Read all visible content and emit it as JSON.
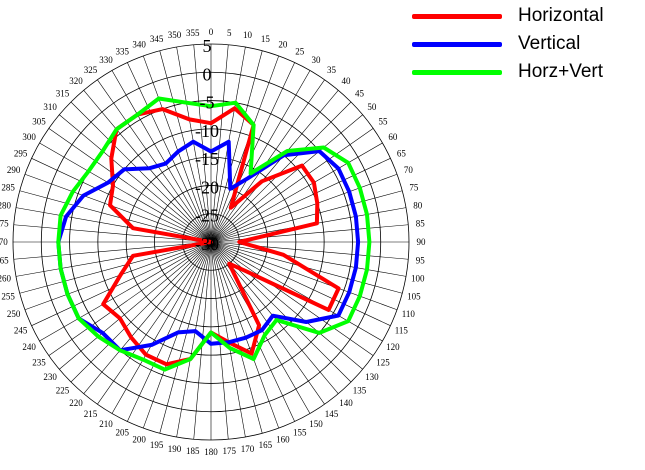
{
  "chart_data": {
    "type": "polar-line",
    "radial_ticks": [
      "5",
      "0",
      "-5",
      "-10",
      "-15",
      "-20",
      "-25",
      "-30"
    ],
    "angle_ticks": [
      "0",
      "5",
      "10",
      "15",
      "20",
      "25",
      "30",
      "35",
      "40",
      "45",
      "50",
      "55",
      "60",
      "65",
      "70",
      "75",
      "80",
      "85",
      "90",
      "95",
      "100",
      "105",
      "110",
      "115",
      "120",
      "125",
      "130",
      "135",
      "140",
      "145",
      "150",
      "155",
      "160",
      "165",
      "170",
      "175",
      "180",
      "185",
      "190",
      "195",
      "200",
      "205",
      "210",
      "215",
      "220",
      "225",
      "230",
      "235",
      "240",
      "245",
      "250",
      "255",
      "260",
      "265",
      "270",
      "275",
      "280",
      "285",
      "290",
      "295",
      "300",
      "305",
      "310",
      "315",
      "320",
      "325",
      "330",
      "335",
      "340",
      "345",
      "350",
      "355"
    ],
    "legend_position": "top-right",
    "angles": [
      0,
      10,
      20,
      30,
      40,
      50,
      60,
      70,
      80,
      90,
      100,
      110,
      120,
      130,
      140,
      150,
      160,
      170,
      180,
      190,
      200,
      210,
      220,
      230,
      240,
      250,
      260,
      270,
      280,
      290,
      300,
      310,
      320,
      330,
      340,
      350
    ],
    "series": [
      {
        "name": "Horizontal",
        "color": "#ff0000",
        "values": [
          -9,
          -6,
          -8,
          -23,
          -16,
          -9,
          -9,
          -10,
          -11,
          -25,
          -17,
          -6,
          -6,
          -22,
          -25,
          -13,
          -9,
          -12,
          -14,
          -9,
          -7,
          -7,
          -8,
          -9,
          -8,
          -13,
          -16,
          -30,
          -16,
          -11,
          -10,
          -7,
          -4,
          -4,
          -5,
          -8
        ]
      },
      {
        "name": "Vertical",
        "color": "#0000ff",
        "values": [
          -14,
          -12,
          -20,
          -17,
          -10,
          -5,
          -4,
          -4,
          -4,
          -4,
          -4,
          -4,
          -4,
          -8,
          -13,
          -12,
          -12,
          -12,
          -12,
          -14,
          -13,
          -9,
          -5,
          -5,
          -3,
          -3,
          -3,
          -3,
          -4,
          -6,
          -9,
          -10,
          -13,
          -14,
          -13,
          -12
        ]
      },
      {
        "name": "Horz+Vert",
        "color": "#00ff00",
        "values": [
          -6,
          -5,
          -8,
          -16,
          -9,
          -4,
          -2,
          -2,
          -2,
          -2,
          -2,
          -2,
          -2,
          -5,
          -12,
          -11,
          -8,
          -11,
          -14,
          -9,
          -6,
          -6,
          -5,
          -4,
          -3,
          -3,
          -3,
          -3,
          -3,
          -4,
          -5,
          -5,
          -4,
          -4,
          -3,
          -5
        ]
      }
    ]
  }
}
